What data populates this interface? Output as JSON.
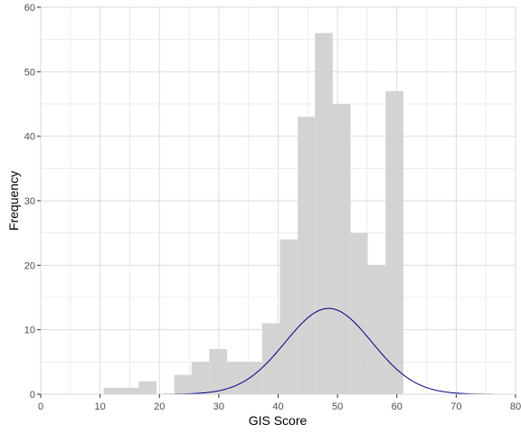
{
  "chart_data": {
    "type": "bar",
    "xlabel": "GIS Score",
    "ylabel": "Frequency",
    "xlim": [
      0,
      80
    ],
    "ylim": [
      0,
      60
    ],
    "x_ticks": [
      0,
      10,
      20,
      30,
      40,
      50,
      60,
      70,
      80
    ],
    "y_ticks": [
      0,
      10,
      20,
      30,
      40,
      50,
      60
    ],
    "grid": true,
    "bar_color": "#d3d3d3",
    "curve_color": "#000080",
    "bins": [
      {
        "x0": 10.6,
        "x1": 13.6,
        "count": 1
      },
      {
        "x0": 13.6,
        "x1": 16.5,
        "count": 1
      },
      {
        "x0": 16.5,
        "x1": 19.5,
        "count": 2
      },
      {
        "x0": 19.5,
        "x1": 22.5,
        "count": 0
      },
      {
        "x0": 22.5,
        "x1": 25.4,
        "count": 3
      },
      {
        "x0": 25.4,
        "x1": 28.4,
        "count": 5
      },
      {
        "x0": 28.4,
        "x1": 31.4,
        "count": 7
      },
      {
        "x0": 31.4,
        "x1": 34.3,
        "count": 5
      },
      {
        "x0": 34.3,
        "x1": 37.3,
        "count": 5
      },
      {
        "x0": 37.3,
        "x1": 40.3,
        "count": 11
      },
      {
        "x0": 40.3,
        "x1": 43.3,
        "count": 24
      },
      {
        "x0": 43.3,
        "x1": 46.2,
        "count": 43
      },
      {
        "x0": 46.2,
        "x1": 49.2,
        "count": 56
      },
      {
        "x0": 49.2,
        "x1": 52.2,
        "count": 45
      },
      {
        "x0": 52.2,
        "x1": 55.1,
        "count": 25
      },
      {
        "x0": 55.1,
        "x1": 58.1,
        "count": 20
      },
      {
        "x0": 58.1,
        "x1": 61.1,
        "count": 47
      }
    ],
    "normal_curve": {
      "mean": 48.5,
      "sd": 7.3,
      "peak": 13.3,
      "x_start": 19,
      "x_end": 78
    }
  }
}
